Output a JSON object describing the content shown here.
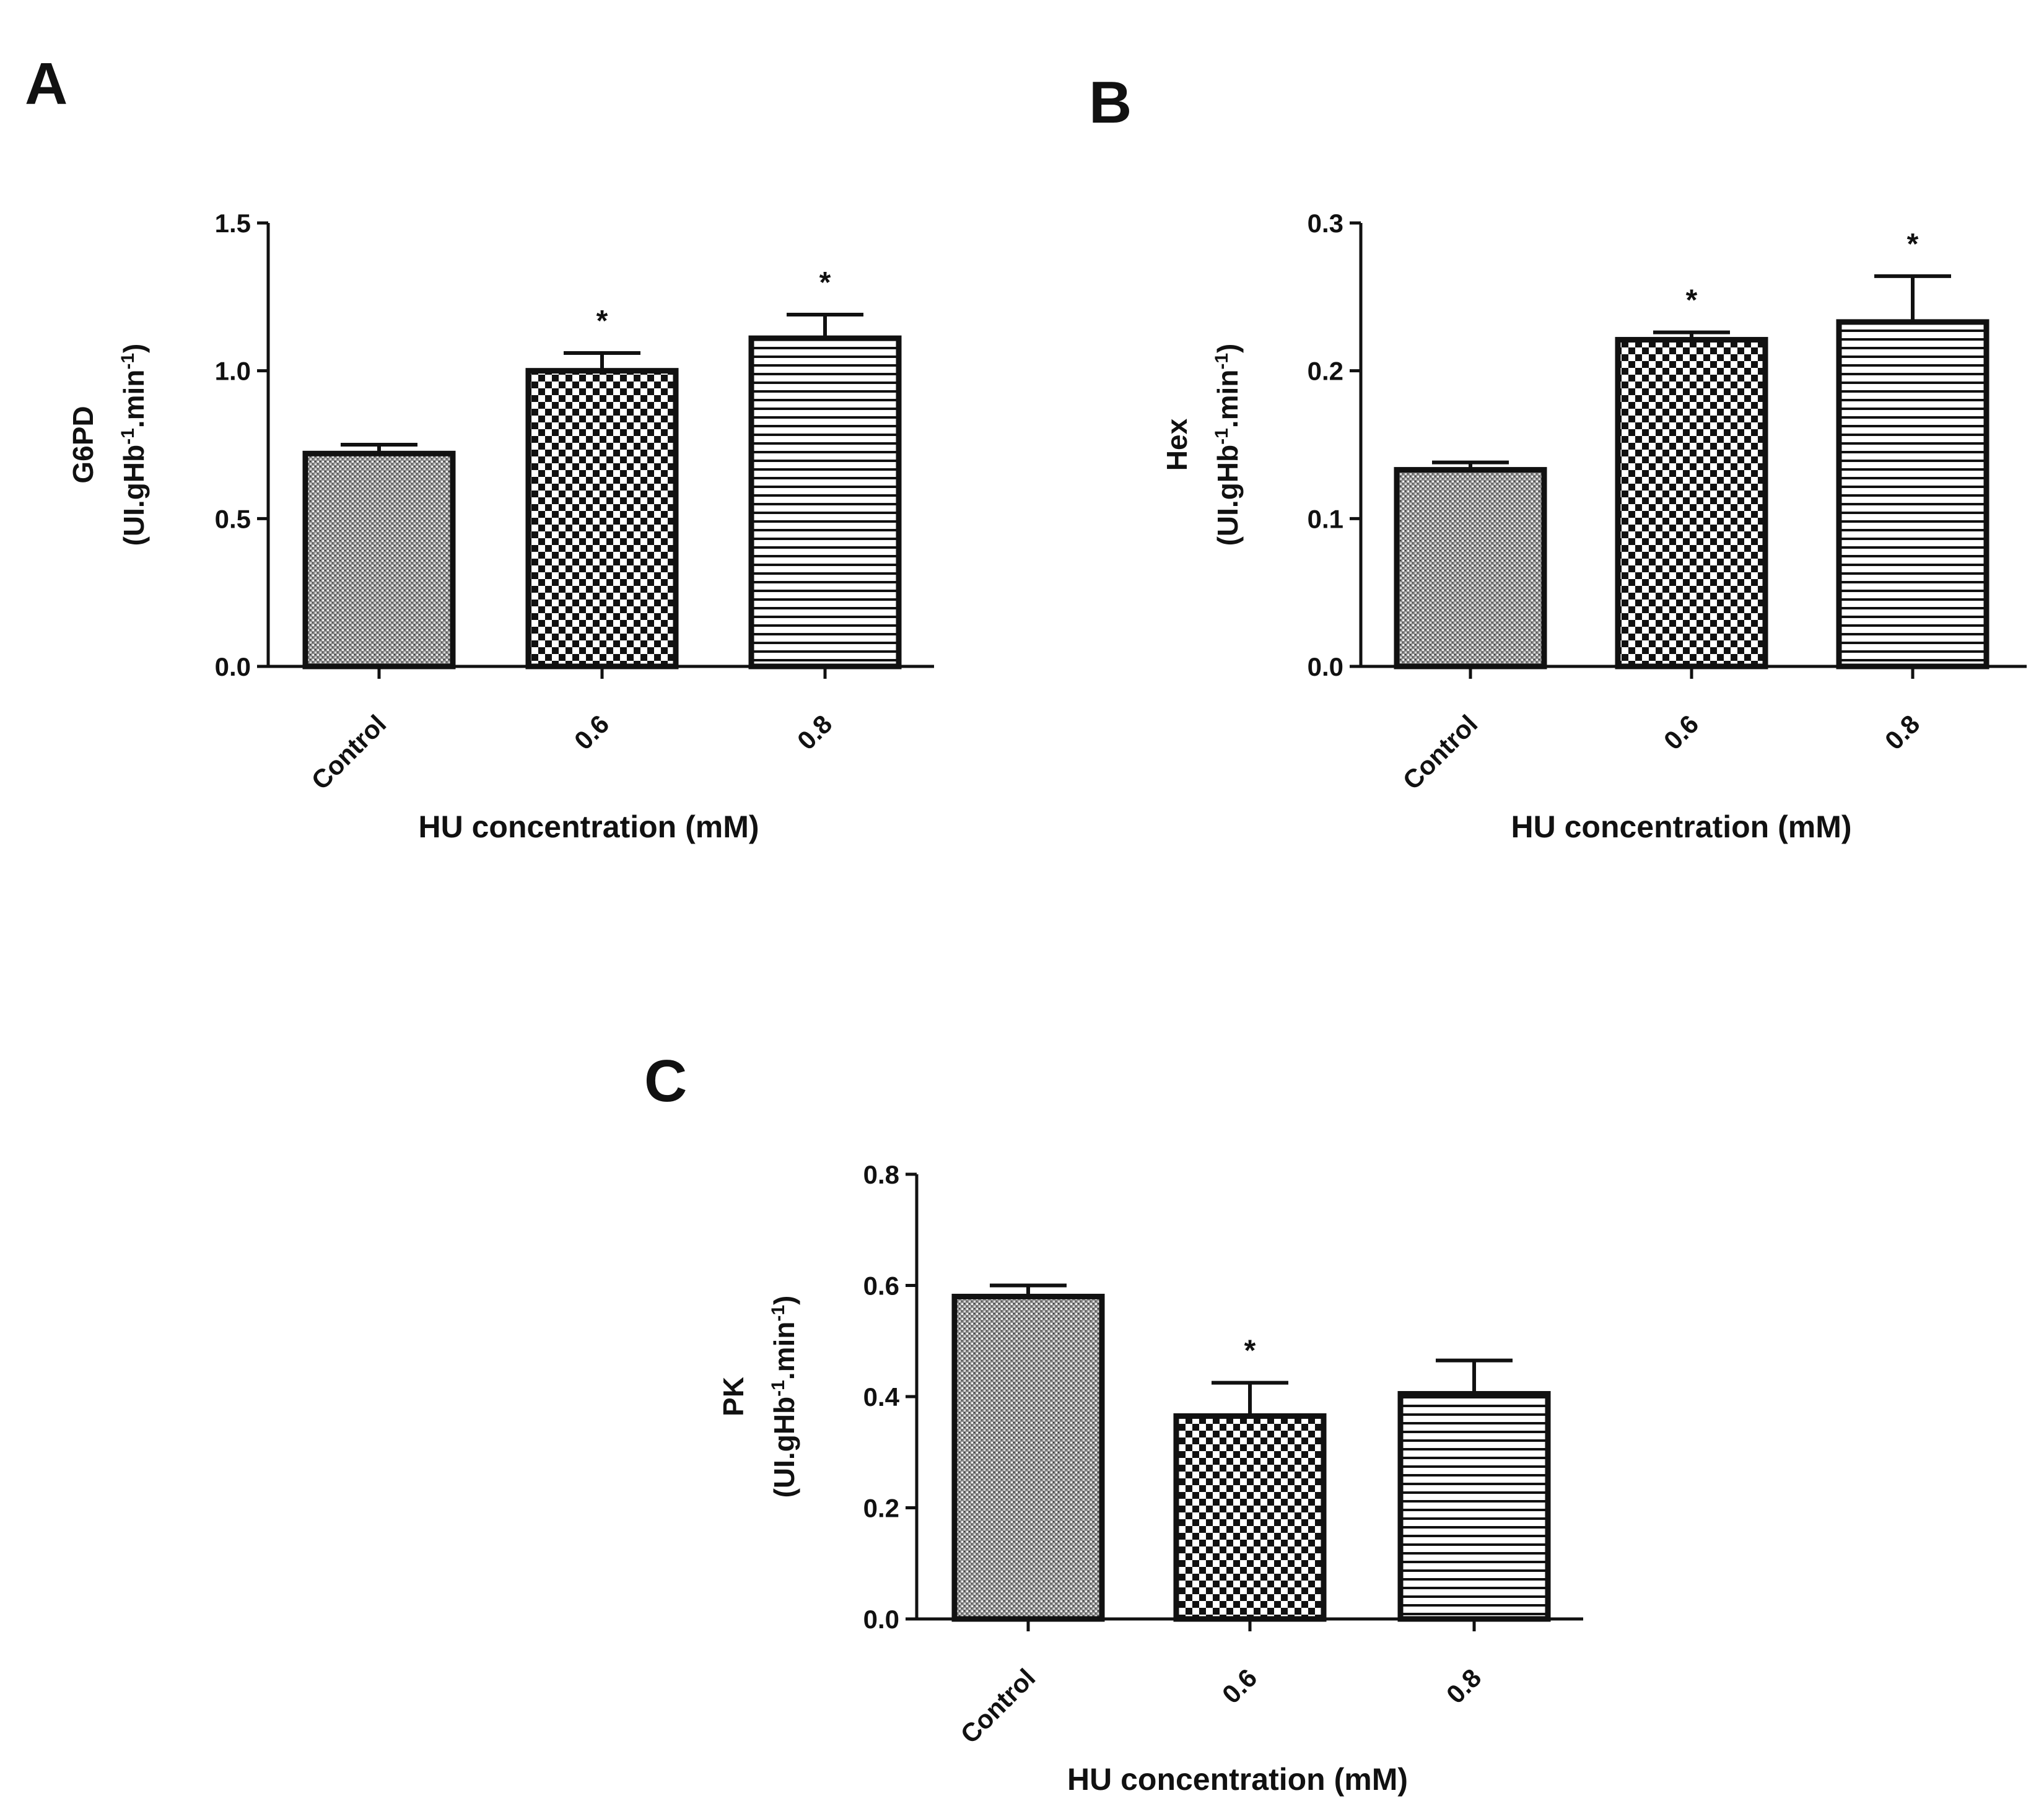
{
  "colors": {
    "ink": "#111111",
    "background": "#ffffff"
  },
  "patterns": [
    "dotted-grey",
    "checkerboard",
    "horizontal-lines"
  ],
  "chart_data": [
    {
      "panel": "A",
      "type": "bar",
      "categories": [
        "Control",
        "0.6",
        "0.8"
      ],
      "values": [
        0.72,
        1.0,
        1.11
      ],
      "errors": [
        0.03,
        0.06,
        0.08
      ],
      "significance": [
        "",
        "*",
        "*"
      ],
      "xlabel": "HU concentration (mM)",
      "ylabel": {
        "name": "G6PD",
        "units_main": "(UI.gHb",
        "units_sup1": "-1",
        "units_mid": ".min",
        "units_sup2": "-1",
        "units_end": ")"
      },
      "ylim": [
        0,
        1.5
      ],
      "yticks": [
        "0.0",
        "0.5",
        "1.0",
        "1.5"
      ],
      "ytick_values": [
        0,
        0.5,
        1.0,
        1.5
      ]
    },
    {
      "panel": "B",
      "type": "bar",
      "categories": [
        "Control",
        "0.6",
        "0.8"
      ],
      "values": [
        0.133,
        0.221,
        0.233
      ],
      "errors": [
        0.005,
        0.005,
        0.031
      ],
      "significance": [
        "",
        "*",
        "*"
      ],
      "xlabel": "HU concentration (mM)",
      "ylabel": {
        "name": "Hex",
        "units_main": "(UI.gHb",
        "units_sup1": "-1",
        "units_mid": ".min",
        "units_sup2": "-1",
        "units_end": ")"
      },
      "ylim": [
        0,
        0.3
      ],
      "yticks": [
        "0.0",
        "0.1",
        "0.2",
        "0.3"
      ],
      "ytick_values": [
        0,
        0.1,
        0.2,
        0.3
      ]
    },
    {
      "panel": "C",
      "type": "bar",
      "categories": [
        "Control",
        "0.6",
        "0.8"
      ],
      "values": [
        0.58,
        0.365,
        0.405
      ],
      "errors": [
        0.02,
        0.06,
        0.06
      ],
      "significance": [
        "",
        "*",
        ""
      ],
      "xlabel": "HU concentration (mM)",
      "ylabel": {
        "name": "PK",
        "units_main": "(UI.gHb",
        "units_sup1": "-1",
        "units_mid": ".min",
        "units_sup2": "-1",
        "units_end": ")"
      },
      "ylim": [
        0,
        0.8
      ],
      "yticks": [
        "0.0",
        "0.2",
        "0.4",
        "0.6",
        "0.8"
      ],
      "ytick_values": [
        0,
        0.2,
        0.4,
        0.6,
        0.8
      ]
    }
  ]
}
